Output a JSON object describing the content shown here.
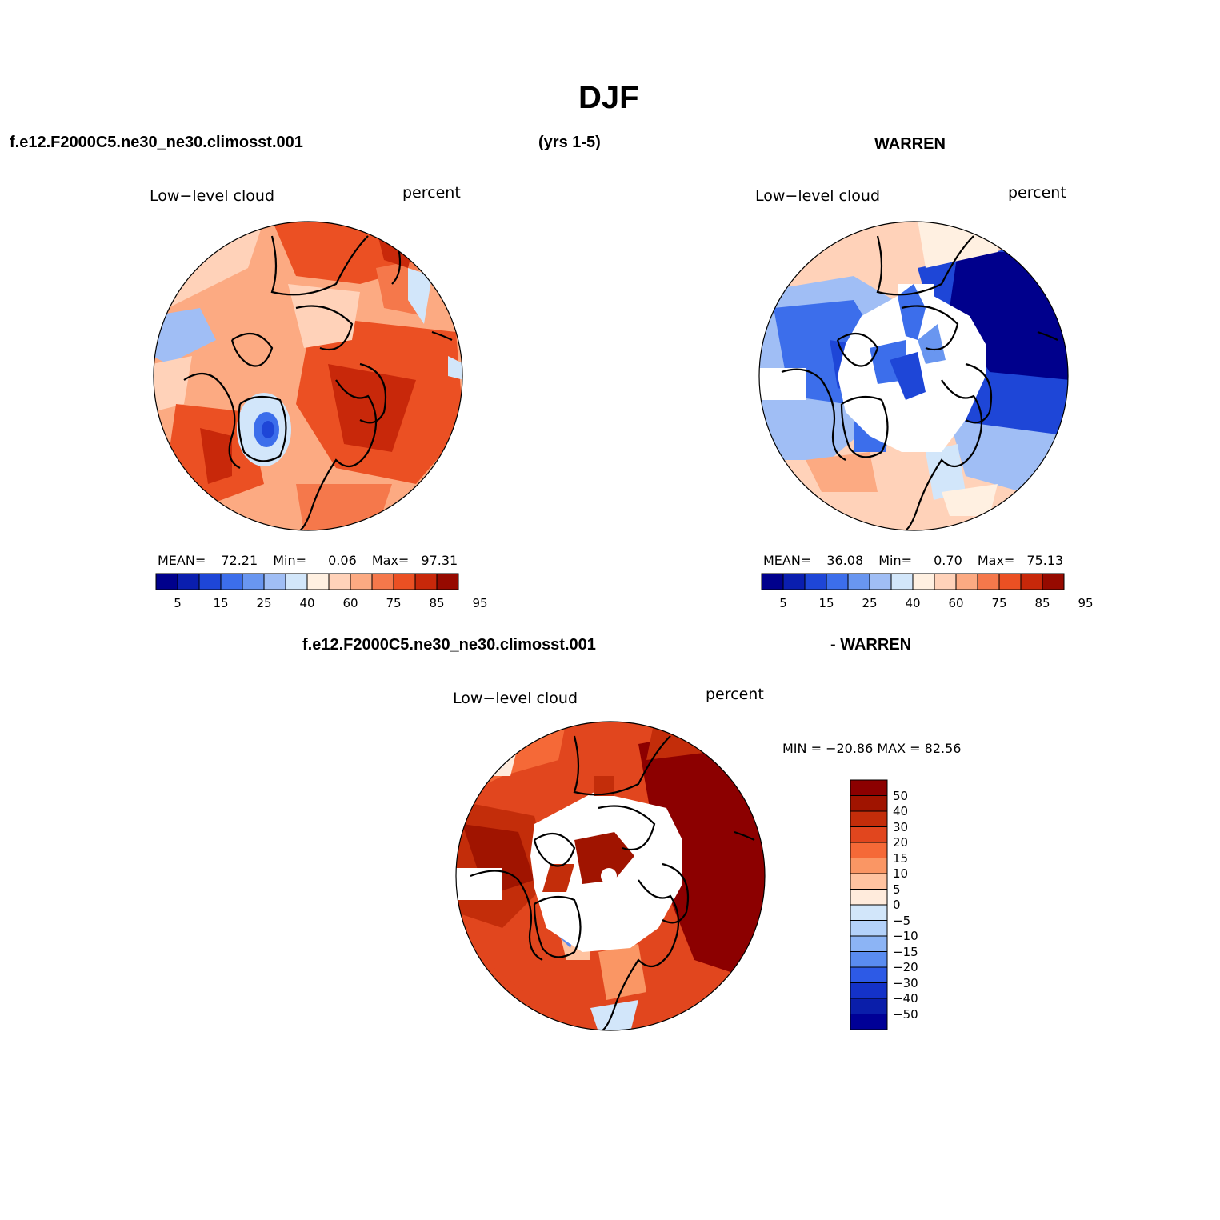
{
  "title": "DJF",
  "header": {
    "case_name": "f.e12.F2000C5.ne30_ne30.climosst.001",
    "years": "(yrs 1-5)",
    "obs_name": "WARREN",
    "diff_case_name": "f.e12.F2000C5.ne30_ne30.climosst.001",
    "diff_obs_name": "- WARREN"
  },
  "panels": [
    {
      "id": "model",
      "variable_label": "Low−level cloud",
      "units_label": "percent",
      "stats": {
        "mean_label": "MEAN=",
        "mean": "72.21",
        "min_label": "Min=",
        "min": "0.06",
        "max_label": "Max=",
        "max": "97.31"
      },
      "colorbar_ticks": [
        "5",
        "15",
        "25",
        "40",
        "60",
        "75",
        "85",
        "95"
      ]
    },
    {
      "id": "obs",
      "variable_label": "Low−level cloud",
      "units_label": "percent",
      "stats": {
        "mean_label": "MEAN=",
        "mean": "36.08",
        "min_label": "Min=",
        "min": "0.70",
        "max_label": "Max=",
        "max": "75.13"
      },
      "colorbar_ticks": [
        "5",
        "15",
        "25",
        "40",
        "60",
        "75",
        "85",
        "95"
      ]
    },
    {
      "id": "diff",
      "variable_label": "Low−level cloud",
      "units_label": "percent",
      "minmax_label": "MIN = −20.86 MAX =  82.56",
      "colorbar_ticks": [
        "50",
        "40",
        "30",
        "20",
        "15",
        "10",
        "5",
        "0",
        "−5",
        "−10",
        "−15",
        "−20",
        "−30",
        "−40",
        "−50"
      ]
    }
  ],
  "palette": [
    "#00008c",
    "#0a1eaf",
    "#1e46d7",
    "#3c6eeb",
    "#6996f0",
    "#a0bef5",
    "#d2e6fa",
    "#fff0e1",
    "#ffd2b9",
    "#fcaa82",
    "#f5784b",
    "#eb5023",
    "#c8280a",
    "#960a00"
  ],
  "diff_palette": [
    "#8c0000",
    "#a01400",
    "#c32d0a",
    "#e1461e",
    "#f56937",
    "#fa9664",
    "#ffc3a0",
    "#ffebdc",
    "#d2e6fa",
    "#b4d2fa",
    "#8cb4f5",
    "#5a8cf0",
    "#2d5ae6",
    "#1432c8",
    "#0a1eaa",
    "#000096"
  ]
}
